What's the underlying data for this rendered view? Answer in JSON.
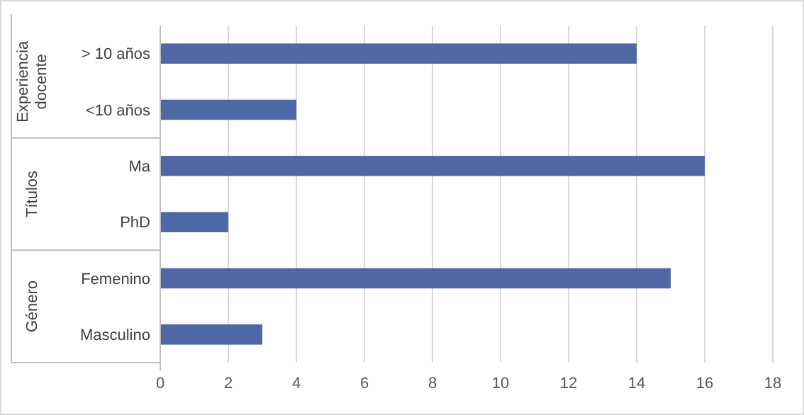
{
  "chart_data": {
    "type": "bar",
    "orientation": "horizontal",
    "categories": [
      "> 10 años",
      "<10 años",
      "Ma",
      "PhD",
      "Femenino",
      "Masculino"
    ],
    "values": [
      14,
      4,
      16,
      2,
      15,
      3
    ],
    "color": "#4f69a6",
    "xlim": [
      0,
      18
    ],
    "xticks": [
      0,
      2,
      4,
      6,
      8,
      10,
      12,
      14,
      16,
      18
    ],
    "grid": "x",
    "annotations": [
      "Experiencia docente",
      "Títulos",
      "Género"
    ]
  }
}
